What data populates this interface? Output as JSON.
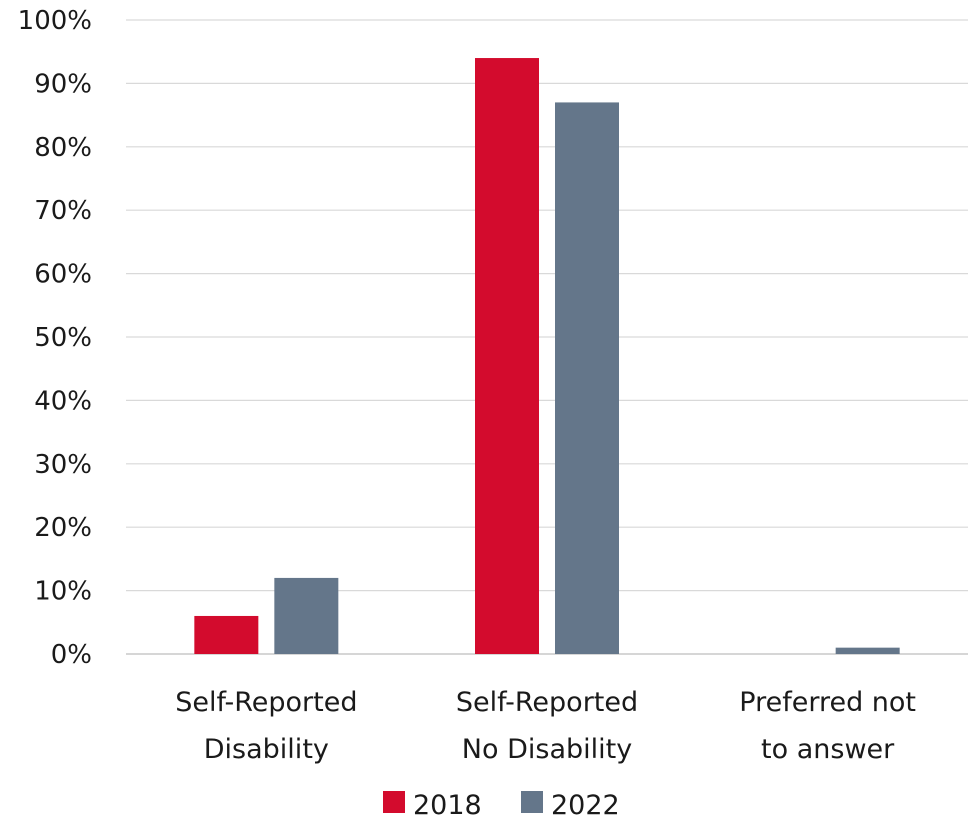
{
  "chart_data": {
    "type": "bar",
    "title": "",
    "xlabel": "",
    "ylabel": "",
    "ylim": [
      0,
      100
    ],
    "y_ticks": [
      "0%",
      "10%",
      "20%",
      "30%",
      "40%",
      "50%",
      "60%",
      "70%",
      "80%",
      "90%",
      "100%"
    ],
    "categories": [
      [
        "Self-Reported",
        "Disability"
      ],
      [
        "Self-Reported",
        "No Disability"
      ],
      [
        "Preferred not",
        "to answer"
      ]
    ],
    "series": [
      {
        "name": "2018",
        "color": "#d30b2d",
        "values": [
          6,
          94,
          0
        ]
      },
      {
        "name": "2022",
        "color": "#64768a",
        "values": [
          12,
          87,
          1
        ]
      }
    ],
    "grid": true,
    "legend": "bottom"
  }
}
